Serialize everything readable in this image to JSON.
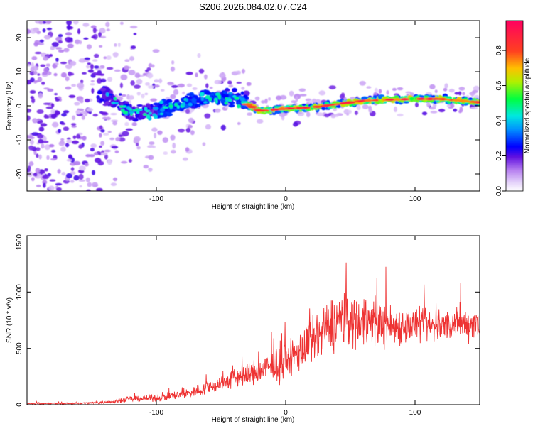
{
  "chart_data": [
    {
      "type": "heatmap",
      "title": "S206.2026.084.02.07.C24",
      "xlabel": "Height of straight line (km)",
      "ylabel": "Frequency (Hz)",
      "xlim": [
        -200,
        150
      ],
      "ylim": [
        -25,
        25
      ],
      "xticks": [
        -100,
        0,
        100
      ],
      "yticks": [
        -20,
        -10,
        0,
        10,
        20
      ],
      "colorbar": {
        "label": "Normalized spectral amplitude",
        "range": [
          0,
          0.97
        ],
        "ticks": [
          "0.0",
          "0.2",
          "0.4",
          "0.6",
          "0.8"
        ],
        "tick_values": [
          0.0,
          0.2,
          0.4,
          0.6,
          0.8
        ],
        "colormap": [
          "#ffffff",
          "#d8c2f6",
          "#8a33e0",
          "#5a10d8",
          "#0000ff",
          "#00d8f0",
          "#00ff40",
          "#f0f000",
          "#ff3030",
          "#ff0060"
        ]
      },
      "trace": {
        "description_values": "frequency centroid vs height",
        "x": [
          -140,
          -120,
          -100,
          -80,
          -60,
          -40,
          -20,
          0,
          20,
          40,
          60,
          80,
          100,
          120,
          150
        ],
        "y": [
          3.5,
          -2,
          -1.5,
          0.5,
          2.5,
          2.5,
          -1.5,
          -0.8,
          -0.5,
          0.5,
          1.5,
          1.8,
          2,
          2,
          1
        ]
      }
    },
    {
      "type": "line",
      "xlabel": "Height of straight line (km)",
      "ylabel": "SNR (10 * v/v)",
      "xlim": [
        -200,
        150
      ],
      "ylim": [
        0,
        1500
      ],
      "xticks": [
        -100,
        0,
        100
      ],
      "yticks": [
        0,
        500,
        1000,
        1500
      ],
      "color": "#ee3333",
      "envelope": {
        "x": [
          -200,
          -160,
          -140,
          -120,
          -100,
          -80,
          -60,
          -40,
          -20,
          0,
          20,
          40,
          60,
          80,
          100,
          120,
          150
        ],
        "mean": [
          10,
          12,
          20,
          50,
          60,
          90,
          150,
          230,
          300,
          380,
          550,
          750,
          750,
          700,
          700,
          700,
          730
        ],
        "amp": [
          10,
          12,
          18,
          40,
          50,
          70,
          100,
          150,
          200,
          250,
          350,
          420,
          380,
          300,
          250,
          220,
          250
        ]
      }
    }
  ]
}
